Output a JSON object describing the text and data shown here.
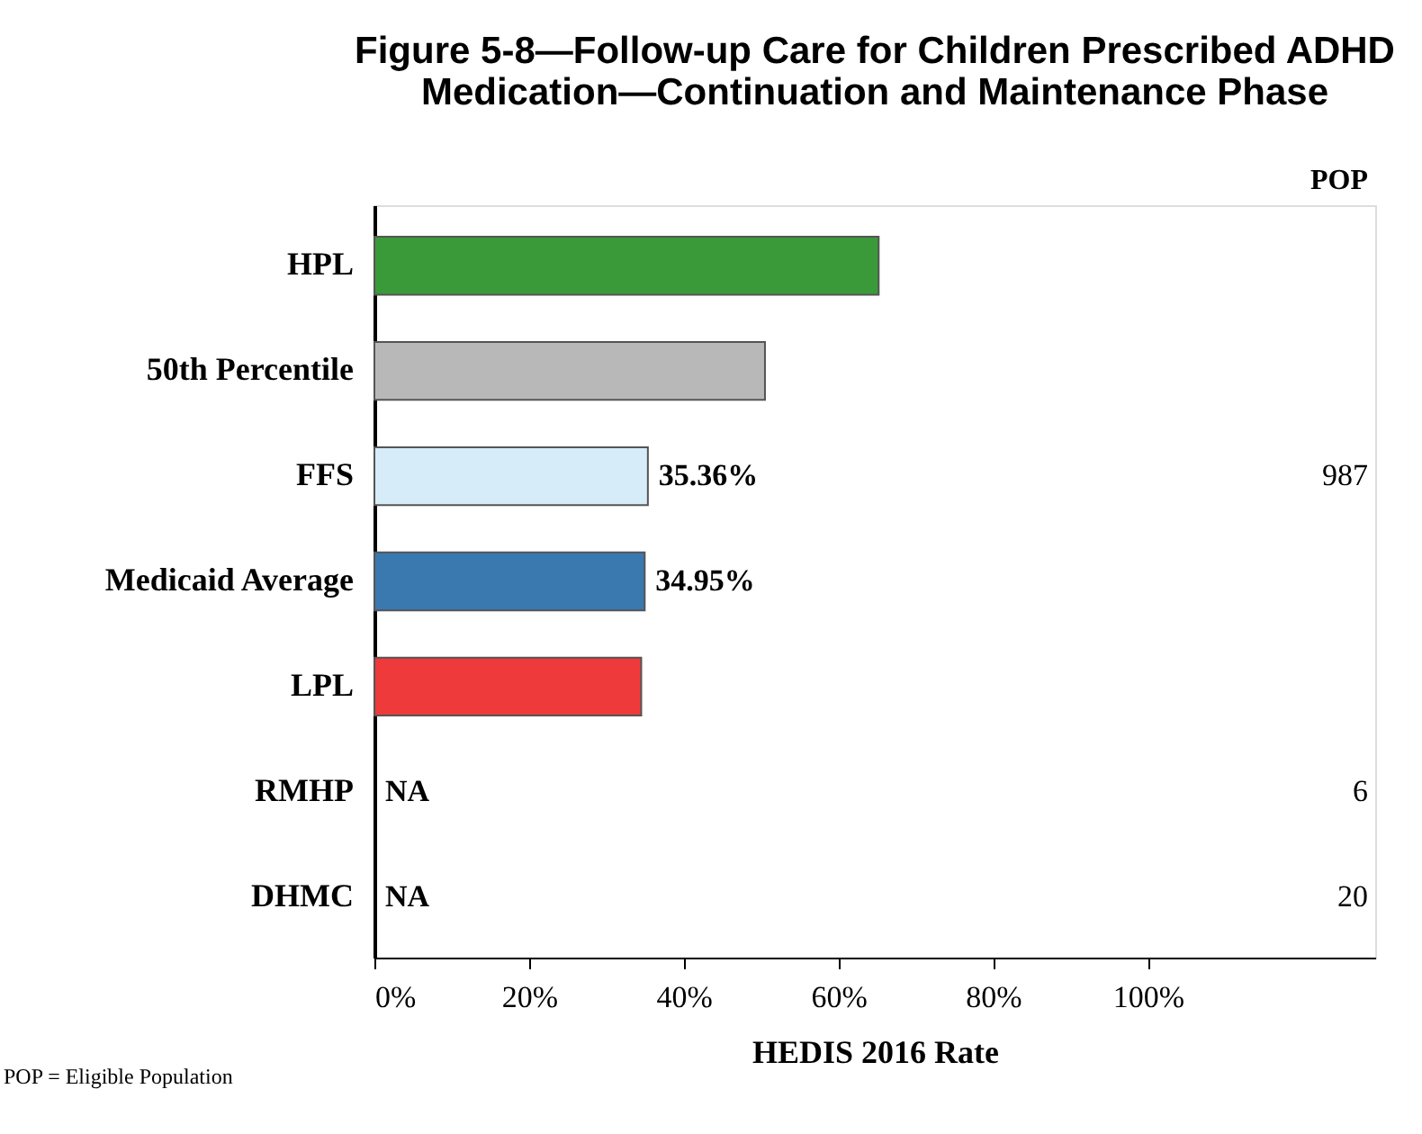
{
  "chart_data": {
    "type": "bar",
    "orientation": "horizontal",
    "title": "Figure 5-8—Follow-up Care for Children Prescribed ADHD Medication—Continuation and Maintenance Phase",
    "xlabel": "HEDIS 2016 Rate",
    "categories": [
      "HPL",
      "50th Percentile",
      "FFS",
      "Medicaid Average",
      "LPL",
      "RMHP",
      "DHMC"
    ],
    "values": [
      65.2,
      50.5,
      35.36,
      34.95,
      34.5,
      null,
      null
    ],
    "colors": [
      "#3a9a3a",
      "#b8b8b8",
      "#d6ecf8",
      "#3a78b0",
      "#ee3a3a",
      "#888888",
      "#888888"
    ],
    "value_labels": [
      null,
      null,
      "35.36%",
      "34.95%",
      null,
      "NA",
      "NA"
    ],
    "xlim": [
      0,
      129.4
    ],
    "xticks": [
      {
        "value": 0,
        "label": "0%"
      },
      {
        "value": 20,
        "label": "20%"
      },
      {
        "value": 40,
        "label": "40%"
      },
      {
        "value": 60,
        "label": "60%"
      },
      {
        "value": 80,
        "label": "80%"
      },
      {
        "value": 100,
        "label": "100%"
      }
    ],
    "grid": false,
    "annotations": [
      "POP",
      "POP = Eligible Population",
      "987",
      "6",
      "20"
    ]
  }
}
